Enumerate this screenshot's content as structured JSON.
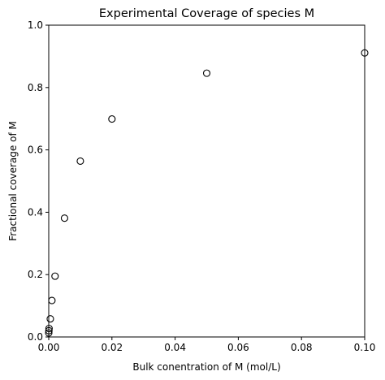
{
  "chart_data": {
    "type": "scatter",
    "title": "Experimental Coverage of species M",
    "xlabel": "Bulk conentration of M (mol/L)",
    "ylabel": "Fractional coverage of M",
    "xlim": [
      0,
      0.1
    ],
    "ylim": [
      0,
      1.0
    ],
    "x_ticks": [
      0.0,
      0.02,
      0.04,
      0.06,
      0.08,
      0.1
    ],
    "x_tick_labels": [
      "0.00",
      "0.02",
      "0.04",
      "0.06",
      "0.08",
      "0.10"
    ],
    "y_ticks": [
      0.0,
      0.2,
      0.4,
      0.6,
      0.8,
      1.0
    ],
    "y_tick_labels": [
      "0.0",
      "0.2",
      "0.4",
      "0.6",
      "0.8",
      "1.0"
    ],
    "grid": false,
    "marker": "open-circle",
    "marker_color": "#000000",
    "series": [
      {
        "x": [
          1e-05,
          5e-05,
          0.0001,
          0.0005,
          0.001,
          0.002,
          0.005,
          0.01,
          0.02,
          0.05,
          0.1
        ],
        "y": [
          0.013,
          0.02,
          0.027,
          0.058,
          0.117,
          0.195,
          0.381,
          0.564,
          0.699,
          0.846,
          0.911
        ]
      }
    ]
  }
}
